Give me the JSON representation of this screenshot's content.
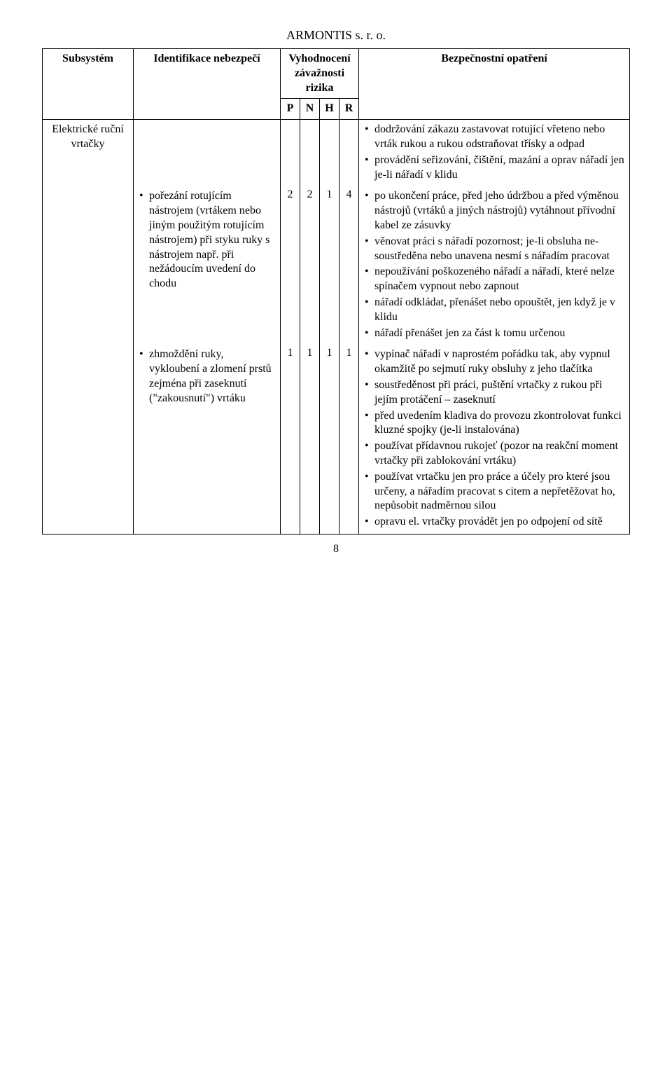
{
  "company_header": "ARMONTIS s. r. o.",
  "table": {
    "headers": {
      "subsystem": "Subsystém",
      "identification": "Identifikace nebezpečí",
      "evaluation_line1": "Vyhodnocení",
      "evaluation_line2": "závažnosti rizika",
      "P": "P",
      "N": "N",
      "H": "H",
      "R": "R",
      "measures": "Bezpečnostní opatření"
    },
    "subsystem_label": "Elektrické ruční vrtačky",
    "rows": [
      {
        "identification": [],
        "P": "",
        "N": "",
        "H": "",
        "R": "",
        "measures": [
          "dodržování zákazu zastavovat rotující vřeteno nebo vrták rukou a rukou odstraňovat třísky a odpad",
          "provádění seřizování, čištění, mazání a oprav nářadí jen je-li nářadí v klidu"
        ]
      },
      {
        "identification": [
          "pořezání rotujícím nástrojem (vrtákem nebo jiným použitým rotujícím nástrojem) při styku ruky s nástrojem např. při nežádoucím uvedení do chodu"
        ],
        "P": "2",
        "N": "2",
        "H": "1",
        "R": "4",
        "measures": [
          "po ukončení práce, před jeho údržbou a před výměnou nástrojů (vrtáků a jiných nástrojů) vytáhnout přívodní kabel ze zásuvky",
          "věnovat práci s nářadí pozornost; je-li obsluha ne-soustředěna nebo unavena nesmí s nářadím pracovat",
          "nepoužívání poškozeného nářadí a nářadí, které nelze spínačem vypnout nebo zapnout",
          "nářadí odkládat, přenášet nebo opouštět, jen když je v klidu",
          "nářadí přenášet jen za část k tomu určenou"
        ]
      },
      {
        "identification": [
          "zhmoždění ruky, vykloubení a zlomení prstů zejména při zaseknutí (\"zakousnutí\") vrtáku"
        ],
        "P": "1",
        "N": "1",
        "H": "1",
        "R": "1",
        "measures": [
          "vypínač nářadí v naprostém pořádku tak, aby vypnul okamžitě po sejmutí ruky obsluhy z jeho tlačítka",
          "soustředěnost při práci, puštění vrtačky z rukou při jejím protáčení – zaseknutí",
          "před uvedením kladiva do provozu zkontrolovat funkci kluzné spojky (je-li instalována)",
          "používat přídavnou rukojeť (pozor na reakční moment vrtačky při zablokování vrtáku)",
          "používat vrtačku jen pro práce a účely pro které jsou určeny, a nářadím pracovat s citem a nepřetěžovat ho, nepůsobit nadměrnou silou",
          "opravu el. vrtačky provádět jen po odpojení od sítě"
        ]
      }
    ]
  },
  "page_number": "8"
}
